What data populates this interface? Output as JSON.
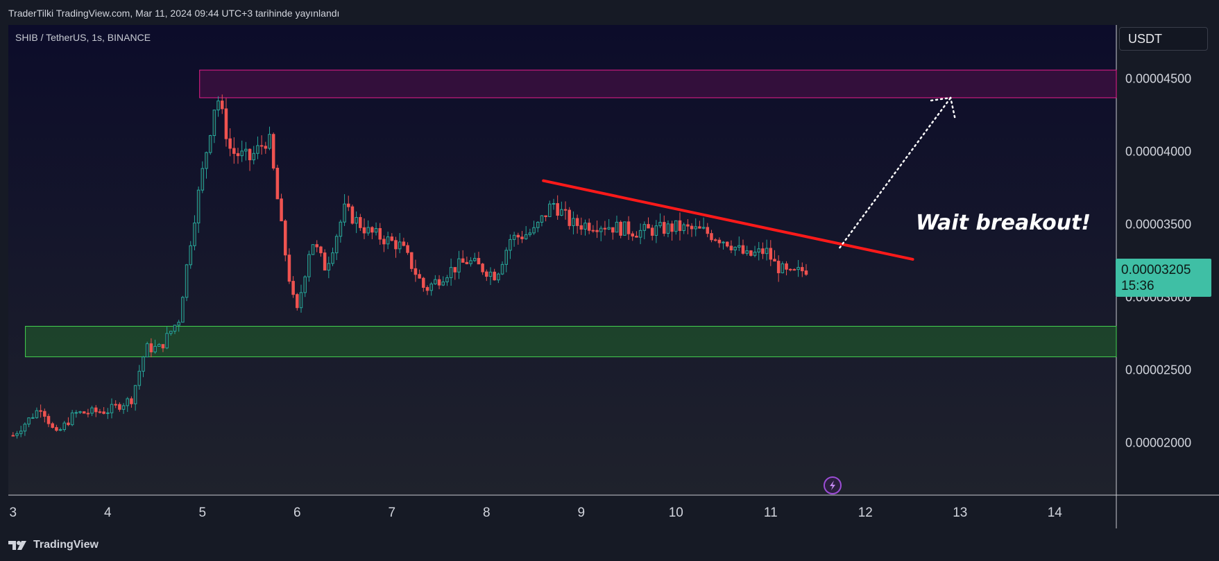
{
  "header": {
    "publish_line": "TraderTilki TradingView.com, Mar 11, 2024 09:44 UTC+3 tarihinde yayınlandı"
  },
  "brand": {
    "name": "TradingView"
  },
  "icons": {
    "logo": "tradingview-logo-icon",
    "flash": "lightning-icon"
  },
  "colors": {
    "up": "#26a69a",
    "down": "#ef5350",
    "trendline": "#ff1a1a",
    "resistance": "#e91e63",
    "support": "#4caf50",
    "price_tag": "#3fbfa5"
  },
  "chart_data": {
    "type": "candlestick",
    "symbol_label": "SHIB / TetherUS, 1s, BINANCE",
    "price_unit": "USDT",
    "x_ticks": [
      "3",
      "4",
      "5",
      "6",
      "7",
      "8",
      "9",
      "10",
      "11",
      "12",
      "13",
      "14"
    ],
    "y_ticks": [
      "0.00004500",
      "0.00004000",
      "0.00003500",
      "0.00003000",
      "0.00002500",
      "0.00002000"
    ],
    "y_tick_values": [
      4.5e-05,
      4e-05,
      3.5e-05,
      3e-05,
      2.5e-05,
      2e-05
    ],
    "xlim": [
      2.95,
      14.65
    ],
    "ylim": [
      1.64e-05,
      4.87e-05
    ],
    "current_price": {
      "label": "0.00003205",
      "countdown": "15:36",
      "value": 3.205e-05
    },
    "zones": [
      {
        "name": "resistance",
        "day_start": 4.97,
        "y_low": 4.37e-05,
        "y_high": 4.56e-05
      },
      {
        "name": "support",
        "day_start": 3.13,
        "y_low": 2.59e-05,
        "y_high": 2.8e-05
      }
    ],
    "trendline": {
      "points": [
        [
          8.6,
          3.8e-05
        ],
        [
          12.5,
          3.26e-05
        ]
      ]
    },
    "projection": {
      "points": [
        [
          11.73,
          3.34e-05
        ],
        [
          12.9,
          4.37e-05
        ]
      ]
    },
    "annotation": "Wait breakout!",
    "anchors": [
      [
        3.0,
        2.05e-05
      ],
      [
        3.3,
        2.25e-05
      ],
      [
        3.45,
        2.05e-05
      ],
      [
        3.65,
        2.2e-05
      ],
      [
        4.0,
        2.22e-05
      ],
      [
        4.25,
        2.3e-05
      ],
      [
        4.4,
        2.65e-05
      ],
      [
        4.55,
        2.65e-05
      ],
      [
        4.75,
        2.85e-05
      ],
      [
        4.9,
        3.5e-05
      ],
      [
        5.15,
        4.4e-05
      ],
      [
        5.3,
        4e-05
      ],
      [
        5.5,
        3.95e-05
      ],
      [
        5.7,
        4.1e-05
      ],
      [
        5.85,
        3.4e-05
      ],
      [
        5.95,
        3e-05
      ],
      [
        6.0,
        2.9e-05
      ],
      [
        6.15,
        3.4e-05
      ],
      [
        6.3,
        3.2e-05
      ],
      [
        6.5,
        3.6e-05
      ],
      [
        6.75,
        3.45e-05
      ],
      [
        7.1,
        3.35e-05
      ],
      [
        7.35,
        3.05e-05
      ],
      [
        7.6,
        3.18e-05
      ],
      [
        7.8,
        3.25e-05
      ],
      [
        8.1,
        3.15e-05
      ],
      [
        8.25,
        3.4e-05
      ],
      [
        8.5,
        3.45e-05
      ],
      [
        8.7,
        3.65e-05
      ],
      [
        8.9,
        3.5e-05
      ],
      [
        9.2,
        3.5e-05
      ],
      [
        9.6,
        3.45e-05
      ],
      [
        10.0,
        3.48e-05
      ],
      [
        10.3,
        3.45e-05
      ],
      [
        10.55,
        3.38e-05
      ],
      [
        10.75,
        3.28e-05
      ],
      [
        10.95,
        3.32e-05
      ],
      [
        11.05,
        3.22e-05
      ],
      [
        11.2,
        3.15e-05
      ],
      [
        11.4,
        3.2e-05
      ]
    ]
  }
}
